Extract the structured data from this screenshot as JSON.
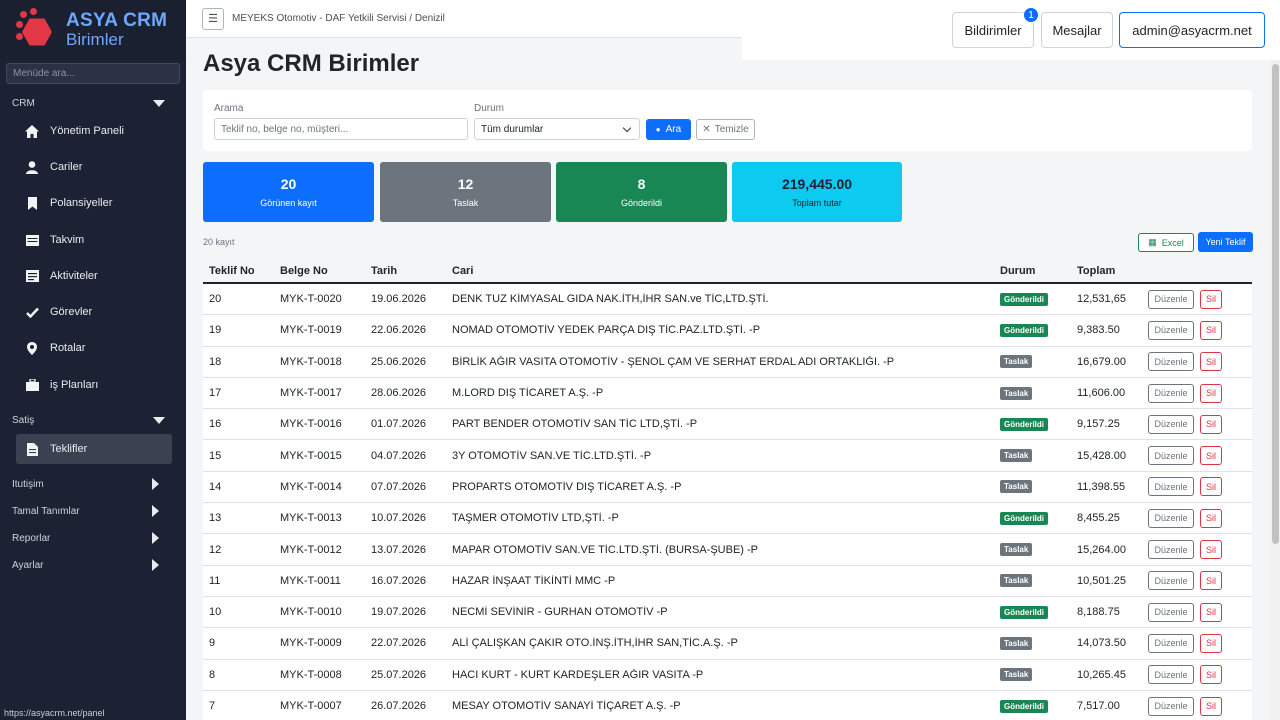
{
  "app": {
    "logo_title": "ASYA CRM",
    "logo_sub": "Birimler"
  },
  "sidebar": {
    "search_placeholder": "Menüde ara...",
    "crm_section": "CRM",
    "crm_items": [
      {
        "label": "Yönetim Paneli",
        "icon": "home-icon"
      },
      {
        "label": "Cariler",
        "icon": "user-icon"
      },
      {
        "label": "Polansiyeller",
        "icon": "bookmark-icon"
      },
      {
        "label": "Takvim",
        "icon": "calendar-icon"
      },
      {
        "label": "Aktiviteler",
        "icon": "list-icon"
      },
      {
        "label": "Görevler",
        "icon": "check-icon"
      },
      {
        "label": "Rotalar",
        "icon": "map-pin-icon"
      },
      {
        "label": "iş Planları",
        "icon": "briefcase-icon"
      }
    ],
    "satis_section": "Satiş",
    "satis_items": [
      {
        "label": "Teklifler",
        "icon": "document-icon"
      }
    ],
    "collapsed_sections": [
      "Itutişim",
      "Tamal Tanımlar",
      "Reporlar",
      "Ayarlar"
    ],
    "status_url": "https://asyacrm.net/panel"
  },
  "topbar": {
    "breadcrumb": "MEYEKS Otomotiv - DAF Yetkili Servisi / Denizil",
    "notifications_label": "Bildirimler",
    "notifications_count": "1",
    "messages_label": "Mesajlar",
    "user_label": "admin@asyacrm.net"
  },
  "page": {
    "title": "Asya CRM Birimler"
  },
  "filters": {
    "search_label": "Arama",
    "search_placeholder": "Teklif no, belge no, müşteri...",
    "status_label": "Durum",
    "status_value": "Tüm durumlar",
    "search_button": "Ara",
    "clear_button": "Temizle"
  },
  "stats": [
    {
      "value": "20",
      "label": "Görünen kayıt",
      "color": "#0d6efd"
    },
    {
      "value": "12",
      "label": "Taslak",
      "color": "#6c757d"
    },
    {
      "value": "8",
      "label": "Gönderildi",
      "color": "#198754"
    },
    {
      "value": "219,445.00",
      "label": "Toplam tutar",
      "color": "#0dcaf0"
    }
  ],
  "list": {
    "record_count": "20 kayıt",
    "excel_button": "Excel",
    "new_button": "Yeni Teklif",
    "edit_label": "Düzenle",
    "delete_label": "Sil",
    "columns": [
      "Teklif No",
      "Belge No",
      "Tarih",
      "Cari",
      "Durum",
      "Toplam"
    ],
    "rows": [
      {
        "no": "20",
        "belge": "MYK-T-0020",
        "tarih": "19.06.2026",
        "cari": "DENK TUZ KİMYASAL GIDA NAK.İTH,İHR SAN.ve TİC,LTD.ŞTİ.",
        "durum": "Gönderildi",
        "toplam": "12,531,65"
      },
      {
        "no": "19",
        "belge": "MYK-T-0019",
        "tarih": "22.06.2026",
        "cari": "NOMAD OTOMOTİV YEDEK PARÇA DIŞ TİC.PAZ.LTD.ŞTİ. -P",
        "durum": "Gönderildi",
        "toplam": "9,383.50"
      },
      {
        "no": "18",
        "belge": "MYK-T-0018",
        "tarih": "25.06.2026",
        "cari": "BİRLİK AĞIR VASITA OTOMOTİV - ŞENOL ÇAM VE SERHAT ERDAL ADI ORTAKLIĞI. -P",
        "durum": "Taslak",
        "toplam": "16,679.00"
      },
      {
        "no": "17",
        "belge": "MYK-T-0017",
        "tarih": "28.06.2026",
        "cari": "M.LORD DIŞ TİCARET A.Ş. -P",
        "durum": "Taslak",
        "toplam": "11,606.00"
      },
      {
        "no": "16",
        "belge": "MYK-T-0016",
        "tarih": "01.07.2026",
        "cari": "PART BENDER OTOMOTİV SAN TİC LTD,ŞTİ. -P",
        "durum": "Gönderildi",
        "toplam": "9,157.25"
      },
      {
        "no": "15",
        "belge": "MYK-T-0015",
        "tarih": "04.07.2026",
        "cari": "3Y OTOMOTİV SAN.VE TİC.LTD.ŞTİ. -P",
        "durum": "Taslak",
        "toplam": "15,428.00"
      },
      {
        "no": "14",
        "belge": "MYK-T-0014",
        "tarih": "07.07.2026",
        "cari": "PROPARTS OTOMOTİV DIŞ TİCARET A.Ş. -P",
        "durum": "Taslak",
        "toplam": "11,398.55"
      },
      {
        "no": "13",
        "belge": "MYK-T-0013",
        "tarih": "10.07.2026",
        "cari": "TAŞMER OTOMOTİV LTD,ŞTİ. -P",
        "durum": "Gönderildi",
        "toplam": "8,455.25"
      },
      {
        "no": "12",
        "belge": "MYK-T-0012",
        "tarih": "13.07.2026",
        "cari": "MAPAR OTOMOTİV SAN.VE TİC.LTD.ŞTİ. (BURSA-ŞUBE) -P",
        "durum": "Taslak",
        "toplam": "15,264.00"
      },
      {
        "no": "11",
        "belge": "MYK-T-0011",
        "tarih": "16.07.2026",
        "cari": "HAZAR İNŞAAT TİKİNTİ MMC -P",
        "durum": "Taslak",
        "toplam": "10,501.25"
      },
      {
        "no": "10",
        "belge": "MYK-T-0010",
        "tarih": "19.07.2026",
        "cari": "NECMİ SEVİNİR - GURHAN OTOMOTİV -P",
        "durum": "Gönderildi",
        "toplam": "8,188.75"
      },
      {
        "no": "9",
        "belge": "MYK-T-0009",
        "tarih": "22.07.2026",
        "cari": "ALİ ÇALIŞKAN ÇAKIR OTO.İNŞ.İTH,İHR SAN,TİC.A.Ş. -P",
        "durum": "Taslak",
        "toplam": "14,073.50"
      },
      {
        "no": "8",
        "belge": "MYK-T-0008",
        "tarih": "25.07.2026",
        "cari": "HACI KURT - KURT KARDEŞLER AĞIR VASITA -P",
        "durum": "Taslak",
        "toplam": "10,265.45"
      },
      {
        "no": "7",
        "belge": "MYK-T-0007",
        "tarih": "26.07.2026",
        "cari": "MESAY OTOMOTİV SANAYİ TİÇARET A.Ş. -P",
        "durum": "Gönderildi",
        "toplam": "7,517.00"
      }
    ]
  }
}
